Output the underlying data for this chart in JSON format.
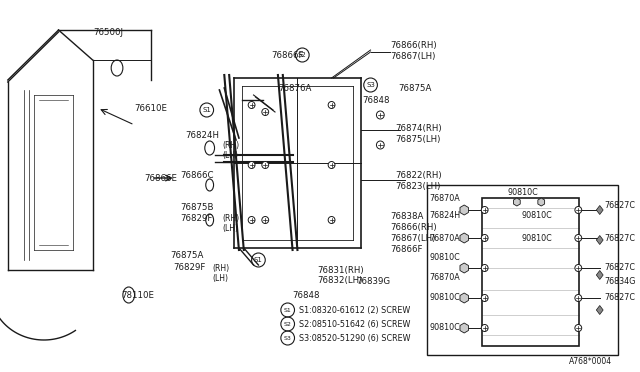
{
  "bg_color": "#ffffff",
  "diagram_number": "A768*0004",
  "screw_legend": [
    {
      "sym": "S1",
      "text": "08320-61612 (2) SCREW"
    },
    {
      "sym": "S2",
      "text": "08510-51642 (6) SCREW"
    },
    {
      "sym": "S3",
      "text": "08520-51290 (6) SCREW"
    }
  ],
  "text_color": "#1a1a1a"
}
